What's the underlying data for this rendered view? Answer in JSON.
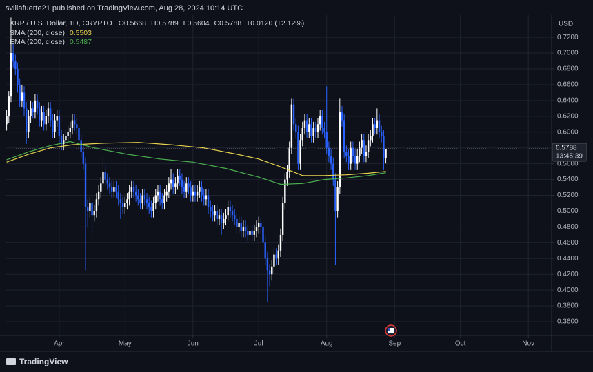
{
  "chart_data": {
    "type": "candlestick",
    "header": "svillafuerte21 published on TradingView.com, Aug 28, 2024 10:14 UTC",
    "symbol": "XRP / U.S. Dollar, 1D, CRYPTO",
    "ohlc_labels": [
      "O",
      "H",
      "L",
      "C"
    ],
    "change": "+0.0120 (+2.12%)",
    "currency": "USD",
    "countdown": "13:45:39",
    "brand": "TradingView",
    "up_color": "#ffffff",
    "down_color": "#2962ff",
    "grid": true,
    "xlim": [
      -0.5,
      248
    ],
    "ylim": [
      0.3426,
      0.748
    ],
    "xticks": [
      {
        "value": 24,
        "label": "Apr"
      },
      {
        "value": 54,
        "label": "May"
      },
      {
        "value": 85,
        "label": "Jun"
      },
      {
        "value": 115,
        "label": "Jul"
      },
      {
        "value": 146,
        "label": "Aug"
      },
      {
        "value": 177,
        "label": "Sep"
      },
      {
        "value": 207,
        "label": "Oct"
      },
      {
        "value": 238,
        "label": "Nov"
      }
    ],
    "yticks": [
      {
        "value": 0.36,
        "label": "0.3600"
      },
      {
        "value": 0.38,
        "label": "0.3800"
      },
      {
        "value": 0.4,
        "label": "0.4000"
      },
      {
        "value": 0.42,
        "label": "0.4200"
      },
      {
        "value": 0.44,
        "label": "0.4400"
      },
      {
        "value": 0.46,
        "label": "0.4600"
      },
      {
        "value": 0.48,
        "label": "0.4800"
      },
      {
        "value": 0.5,
        "label": "0.5000"
      },
      {
        "value": 0.52,
        "label": "0.5200"
      },
      {
        "value": 0.54,
        "label": "0.5400"
      },
      {
        "value": 0.56,
        "label": "0.5600"
      },
      {
        "value": 0.58,
        "label": "0.5800"
      },
      {
        "value": 0.6,
        "label": "0.6000"
      },
      {
        "value": 0.62,
        "label": "0.6200"
      },
      {
        "value": 0.64,
        "label": "0.6400"
      },
      {
        "value": 0.66,
        "label": "0.6600"
      },
      {
        "value": 0.68,
        "label": "0.6800"
      },
      {
        "value": 0.7,
        "label": "0.7000"
      },
      {
        "value": 0.72,
        "label": "0.7200"
      }
    ],
    "candles": [
      [
        0.61,
        0.628,
        0.602,
        0.62
      ],
      [
        0.62,
        0.652,
        0.612,
        0.645
      ],
      [
        0.645,
        0.745,
        0.638,
        0.7
      ],
      [
        0.7,
        0.712,
        0.682,
        0.69
      ],
      [
        0.69,
        0.698,
        0.672,
        0.68
      ],
      [
        0.68,
        0.688,
        0.65,
        0.66
      ],
      [
        0.66,
        0.668,
        0.632,
        0.64
      ],
      [
        0.64,
        0.66,
        0.632,
        0.65
      ],
      [
        0.65,
        0.658,
        0.62,
        0.63
      ],
      [
        0.63,
        0.638,
        0.585,
        0.6
      ],
      [
        0.6,
        0.628,
        0.592,
        0.62
      ],
      [
        0.62,
        0.64,
        0.612,
        0.63
      ],
      [
        0.63,
        0.638,
        0.617,
        0.625
      ],
      [
        0.625,
        0.648,
        0.617,
        0.64
      ],
      [
        0.64,
        0.648,
        0.622,
        0.63
      ],
      [
        0.63,
        0.638,
        0.607,
        0.615
      ],
      [
        0.615,
        0.633,
        0.607,
        0.625
      ],
      [
        0.625,
        0.633,
        0.602,
        0.61
      ],
      [
        0.61,
        0.628,
        0.602,
        0.62
      ],
      [
        0.62,
        0.638,
        0.612,
        0.63
      ],
      [
        0.63,
        0.638,
        0.607,
        0.615
      ],
      [
        0.615,
        0.623,
        0.592,
        0.6
      ],
      [
        0.6,
        0.623,
        0.592,
        0.615
      ],
      [
        0.615,
        0.628,
        0.607,
        0.62
      ],
      [
        0.62,
        0.628,
        0.587,
        0.595
      ],
      [
        0.595,
        0.603,
        0.577,
        0.585
      ],
      [
        0.585,
        0.598,
        0.577,
        0.59
      ],
      [
        0.59,
        0.603,
        0.582,
        0.595
      ],
      [
        0.595,
        0.608,
        0.587,
        0.6
      ],
      [
        0.6,
        0.613,
        0.592,
        0.605
      ],
      [
        0.605,
        0.623,
        0.597,
        0.615
      ],
      [
        0.615,
        0.623,
        0.602,
        0.61
      ],
      [
        0.61,
        0.618,
        0.597,
        0.605
      ],
      [
        0.605,
        0.613,
        0.582,
        0.59
      ],
      [
        0.59,
        0.598,
        0.567,
        0.575
      ],
      [
        0.575,
        0.583,
        0.552,
        0.56
      ],
      [
        0.56,
        0.568,
        0.425,
        0.505
      ],
      [
        0.505,
        0.515,
        0.48,
        0.5
      ],
      [
        0.5,
        0.518,
        0.492,
        0.51
      ],
      [
        0.51,
        0.518,
        0.47,
        0.495
      ],
      [
        0.495,
        0.508,
        0.487,
        0.5
      ],
      [
        0.5,
        0.523,
        0.492,
        0.515
      ],
      [
        0.515,
        0.533,
        0.507,
        0.525
      ],
      [
        0.525,
        0.543,
        0.517,
        0.535
      ],
      [
        0.535,
        0.57,
        0.527,
        0.55
      ],
      [
        0.55,
        0.558,
        0.532,
        0.54
      ],
      [
        0.54,
        0.548,
        0.527,
        0.535
      ],
      [
        0.535,
        0.543,
        0.522,
        0.53
      ],
      [
        0.53,
        0.538,
        0.517,
        0.525
      ],
      [
        0.525,
        0.538,
        0.517,
        0.53
      ],
      [
        0.53,
        0.538,
        0.517,
        0.525
      ],
      [
        0.525,
        0.533,
        0.507,
        0.515
      ],
      [
        0.515,
        0.523,
        0.49,
        0.51
      ],
      [
        0.51,
        0.518,
        0.497,
        0.505
      ],
      [
        0.505,
        0.518,
        0.497,
        0.51
      ],
      [
        0.51,
        0.523,
        0.502,
        0.515
      ],
      [
        0.515,
        0.533,
        0.507,
        0.525
      ],
      [
        0.525,
        0.538,
        0.517,
        0.53
      ],
      [
        0.53,
        0.538,
        0.517,
        0.525
      ],
      [
        0.525,
        0.533,
        0.512,
        0.52
      ],
      [
        0.52,
        0.528,
        0.507,
        0.515
      ],
      [
        0.515,
        0.523,
        0.502,
        0.51
      ],
      [
        0.51,
        0.528,
        0.502,
        0.52
      ],
      [
        0.52,
        0.528,
        0.507,
        0.515
      ],
      [
        0.515,
        0.523,
        0.502,
        0.51
      ],
      [
        0.51,
        0.518,
        0.497,
        0.505
      ],
      [
        0.505,
        0.513,
        0.492,
        0.5
      ],
      [
        0.5,
        0.518,
        0.492,
        0.51
      ],
      [
        0.51,
        0.528,
        0.502,
        0.52
      ],
      [
        0.52,
        0.533,
        0.512,
        0.525
      ],
      [
        0.525,
        0.533,
        0.507,
        0.515
      ],
      [
        0.515,
        0.523,
        0.502,
        0.51
      ],
      [
        0.51,
        0.528,
        0.502,
        0.52
      ],
      [
        0.52,
        0.533,
        0.512,
        0.525
      ],
      [
        0.525,
        0.543,
        0.517,
        0.535
      ],
      [
        0.535,
        0.553,
        0.527,
        0.54
      ],
      [
        0.54,
        0.548,
        0.522,
        0.53
      ],
      [
        0.53,
        0.543,
        0.522,
        0.535
      ],
      [
        0.535,
        0.553,
        0.527,
        0.545
      ],
      [
        0.545,
        0.553,
        0.532,
        0.54
      ],
      [
        0.54,
        0.548,
        0.522,
        0.53
      ],
      [
        0.53,
        0.538,
        0.517,
        0.525
      ],
      [
        0.525,
        0.543,
        0.517,
        0.535
      ],
      [
        0.535,
        0.543,
        0.522,
        0.53
      ],
      [
        0.53,
        0.538,
        0.512,
        0.52
      ],
      [
        0.52,
        0.533,
        0.512,
        0.525
      ],
      [
        0.525,
        0.533,
        0.512,
        0.52
      ],
      [
        0.52,
        0.533,
        0.512,
        0.525
      ],
      [
        0.525,
        0.538,
        0.517,
        0.53
      ],
      [
        0.53,
        0.538,
        0.512,
        0.52
      ],
      [
        0.52,
        0.528,
        0.507,
        0.515
      ],
      [
        0.515,
        0.528,
        0.507,
        0.52
      ],
      [
        0.52,
        0.528,
        0.497,
        0.505
      ],
      [
        0.505,
        0.513,
        0.492,
        0.5
      ],
      [
        0.5,
        0.508,
        0.487,
        0.495
      ],
      [
        0.495,
        0.508,
        0.487,
        0.5
      ],
      [
        0.5,
        0.508,
        0.482,
        0.49
      ],
      [
        0.49,
        0.503,
        0.482,
        0.495
      ],
      [
        0.495,
        0.503,
        0.47,
        0.485
      ],
      [
        0.485,
        0.498,
        0.477,
        0.49
      ],
      [
        0.49,
        0.503,
        0.482,
        0.495
      ],
      [
        0.495,
        0.513,
        0.487,
        0.505
      ],
      [
        0.505,
        0.513,
        0.492,
        0.5
      ],
      [
        0.5,
        0.508,
        0.487,
        0.495
      ],
      [
        0.495,
        0.503,
        0.482,
        0.49
      ],
      [
        0.49,
        0.498,
        0.472,
        0.48
      ],
      [
        0.48,
        0.493,
        0.472,
        0.485
      ],
      [
        0.485,
        0.493,
        0.467,
        0.475
      ],
      [
        0.475,
        0.488,
        0.467,
        0.48
      ],
      [
        0.48,
        0.488,
        0.467,
        0.475
      ],
      [
        0.475,
        0.483,
        0.462,
        0.47
      ],
      [
        0.47,
        0.483,
        0.462,
        0.475
      ],
      [
        0.475,
        0.483,
        0.462,
        0.47
      ],
      [
        0.47,
        0.483,
        0.462,
        0.475
      ],
      [
        0.475,
        0.488,
        0.467,
        0.48
      ],
      [
        0.48,
        0.493,
        0.472,
        0.485
      ],
      [
        0.485,
        0.493,
        0.472,
        0.48
      ],
      [
        0.48,
        0.488,
        0.452,
        0.46
      ],
      [
        0.46,
        0.468,
        0.432,
        0.44
      ],
      [
        0.44,
        0.448,
        0.385,
        0.425
      ],
      [
        0.425,
        0.433,
        0.405,
        0.42
      ],
      [
        0.42,
        0.438,
        0.412,
        0.43
      ],
      [
        0.43,
        0.453,
        0.422,
        0.445
      ],
      [
        0.445,
        0.453,
        0.432,
        0.44
      ],
      [
        0.44,
        0.458,
        0.432,
        0.45
      ],
      [
        0.45,
        0.478,
        0.442,
        0.47
      ],
      [
        0.47,
        0.518,
        0.462,
        0.51
      ],
      [
        0.51,
        0.548,
        0.502,
        0.54
      ],
      [
        0.54,
        0.558,
        0.532,
        0.55
      ],
      [
        0.55,
        0.588,
        0.542,
        0.58
      ],
      [
        0.58,
        0.643,
        0.572,
        0.635
      ],
      [
        0.635,
        0.643,
        0.602,
        0.61
      ],
      [
        0.61,
        0.618,
        0.592,
        0.6
      ],
      [
        0.6,
        0.608,
        0.552,
        0.56
      ],
      [
        0.56,
        0.598,
        0.552,
        0.59
      ],
      [
        0.59,
        0.613,
        0.582,
        0.605
      ],
      [
        0.605,
        0.623,
        0.597,
        0.615
      ],
      [
        0.615,
        0.623,
        0.592,
        0.6
      ],
      [
        0.6,
        0.618,
        0.592,
        0.61
      ],
      [
        0.61,
        0.618,
        0.587,
        0.595
      ],
      [
        0.595,
        0.613,
        0.587,
        0.605
      ],
      [
        0.605,
        0.613,
        0.592,
        0.6
      ],
      [
        0.6,
        0.618,
        0.592,
        0.61
      ],
      [
        0.61,
        0.628,
        0.602,
        0.62
      ],
      [
        0.62,
        0.628,
        0.597,
        0.605
      ],
      [
        0.605,
        0.613,
        0.592,
        0.6
      ],
      [
        0.6,
        0.658,
        0.572,
        0.58
      ],
      [
        0.58,
        0.588,
        0.562,
        0.57
      ],
      [
        0.57,
        0.578,
        0.552,
        0.56
      ],
      [
        0.56,
        0.568,
        0.532,
        0.54
      ],
      [
        0.54,
        0.548,
        0.432,
        0.5
      ],
      [
        0.5,
        0.538,
        0.492,
        0.53
      ],
      [
        0.53,
        0.643,
        0.522,
        0.625
      ],
      [
        0.625,
        0.633,
        0.607,
        0.615
      ],
      [
        0.615,
        0.623,
        0.567,
        0.575
      ],
      [
        0.575,
        0.583,
        0.562,
        0.57
      ],
      [
        0.57,
        0.578,
        0.552,
        0.56
      ],
      [
        0.56,
        0.588,
        0.552,
        0.58
      ],
      [
        0.58,
        0.588,
        0.562,
        0.57
      ],
      [
        0.57,
        0.578,
        0.552,
        0.56
      ],
      [
        0.56,
        0.578,
        0.552,
        0.57
      ],
      [
        0.57,
        0.588,
        0.562,
        0.58
      ],
      [
        0.58,
        0.598,
        0.572,
        0.59
      ],
      [
        0.59,
        0.598,
        0.562,
        0.57
      ],
      [
        0.57,
        0.583,
        0.562,
        0.575
      ],
      [
        0.575,
        0.598,
        0.567,
        0.59
      ],
      [
        0.59,
        0.603,
        0.582,
        0.595
      ],
      [
        0.595,
        0.618,
        0.587,
        0.61
      ],
      [
        0.61,
        0.618,
        0.597,
        0.605
      ],
      [
        0.605,
        0.63,
        0.597,
        0.615
      ],
      [
        0.615,
        0.623,
        0.592,
        0.6
      ],
      [
        0.6,
        0.608,
        0.587,
        0.595
      ],
      [
        0.595,
        0.603,
        0.552,
        0.5668
      ],
      [
        0.5668,
        0.5789,
        0.5604,
        0.5788
      ]
    ],
    "series": [
      {
        "name": "SMA (200, close)",
        "color": "#e8d44d",
        "x": [
          0,
          10,
          20,
          30,
          45,
          60,
          75,
          90,
          105,
          115,
          125,
          135,
          145,
          155,
          165,
          173
        ],
        "values": [
          0.562,
          0.572,
          0.58,
          0.584,
          0.586,
          0.587,
          0.584,
          0.58,
          0.572,
          0.566,
          0.556,
          0.545,
          0.545,
          0.546,
          0.548,
          0.5503
        ]
      },
      {
        "name": "EMA (200, close)",
        "color": "#4caf50",
        "x": [
          0,
          10,
          20,
          29,
          40,
          55,
          70,
          85,
          100,
          115,
          125,
          135,
          145,
          155,
          165,
          173
        ],
        "values": [
          0.565,
          0.575,
          0.583,
          0.588,
          0.58,
          0.572,
          0.566,
          0.562,
          0.554,
          0.543,
          0.534,
          0.535,
          0.54,
          0.542,
          0.545,
          0.5487
        ]
      }
    ]
  }
}
